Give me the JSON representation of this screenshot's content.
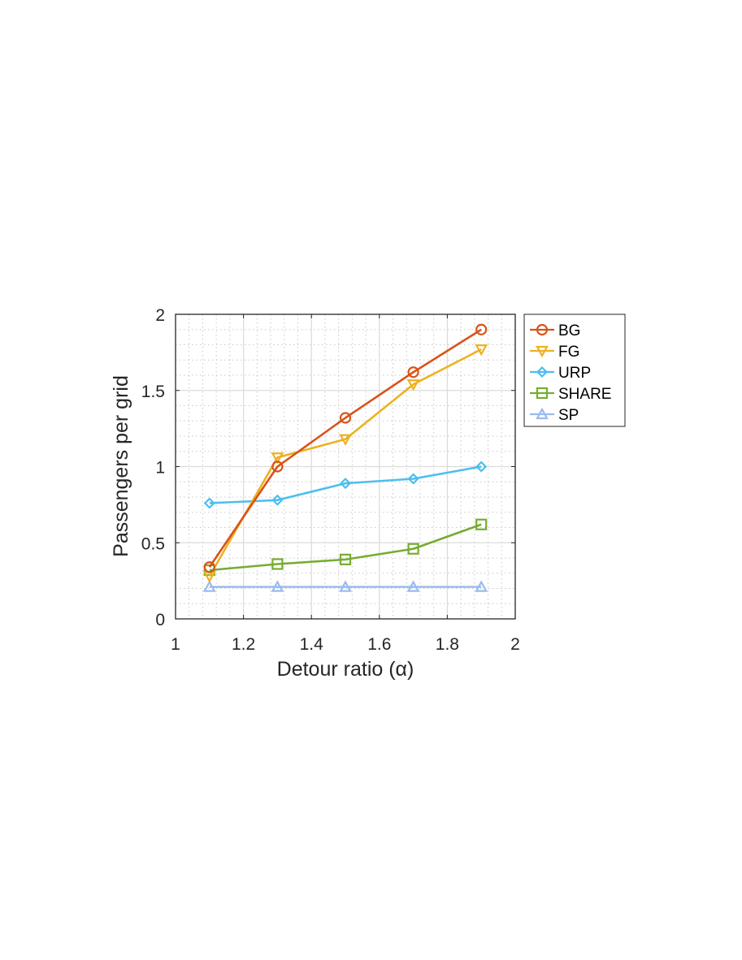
{
  "chart_data": {
    "type": "line",
    "title": "",
    "xlabel": "Detour ratio (α)",
    "ylabel": "Passengers per grid",
    "xlim": [
      1,
      2
    ],
    "ylim": [
      0,
      2
    ],
    "xticks": [
      1,
      1.2,
      1.4,
      1.6,
      1.8,
      2
    ],
    "xtick_labels": [
      "1",
      "1.2",
      "1.4",
      "1.6",
      "1.8",
      "2"
    ],
    "yticks": [
      0,
      0.5,
      1,
      1.5,
      2
    ],
    "ytick_labels": [
      "0",
      "0.5",
      "1",
      "1.5",
      "2"
    ],
    "grid": true,
    "minor_grid": true,
    "legend_position": "outside-top-right",
    "x": [
      1.1,
      1.3,
      1.5,
      1.7,
      1.9
    ],
    "series": [
      {
        "name": "BG",
        "values": [
          0.34,
          1.0,
          1.32,
          1.62,
          1.9
        ],
        "color": "#D95319",
        "marker": "circle"
      },
      {
        "name": "FG",
        "values": [
          0.28,
          1.06,
          1.18,
          1.54,
          1.77
        ],
        "color": "#EDB120",
        "marker": "triangle-down"
      },
      {
        "name": "URP",
        "values": [
          0.76,
          0.78,
          0.89,
          0.92,
          1.0
        ],
        "color": "#4DBEEE",
        "marker": "diamond"
      },
      {
        "name": "SHARE",
        "values": [
          0.32,
          0.36,
          0.39,
          0.46,
          0.62
        ],
        "color": "#77AC30",
        "marker": "square"
      },
      {
        "name": "SP",
        "values": [
          0.21,
          0.21,
          0.21,
          0.21,
          0.21
        ],
        "color": "#99BBEE",
        "marker": "triangle-up"
      }
    ]
  }
}
